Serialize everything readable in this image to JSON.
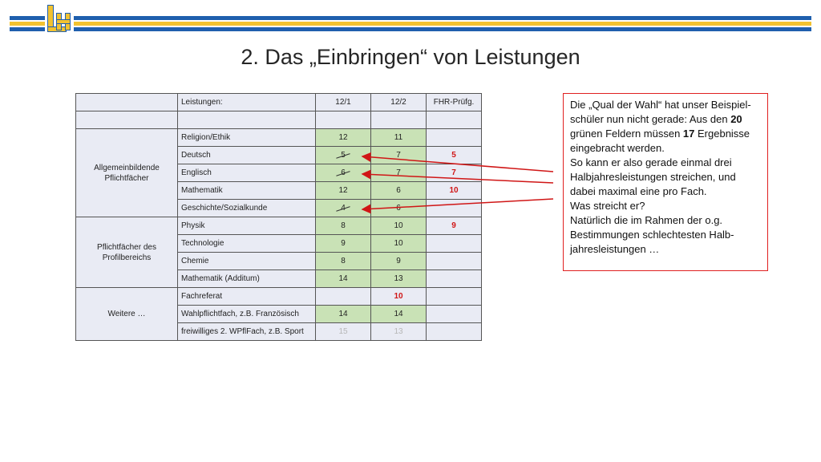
{
  "header": {
    "title": "2. Das „Einbringen“ von Leistungen"
  },
  "colors": {
    "accent_blue": "#1f5fae",
    "accent_yellow": "#f2c230",
    "cell_green": "#c9e2b6",
    "highlight_red": "#d01616"
  },
  "table": {
    "header": {
      "label": "Leistungen:",
      "col1": "12/1",
      "col2": "12/2",
      "col3": "FHR-Prüfg."
    },
    "groups": {
      "allgemein": "Allgemeinbildende Pflichtfächer",
      "profil": "Pflichtfächer des Profilbereichs",
      "weitere": "Weitere …"
    },
    "rows": [
      {
        "subject": "Religion/Ethik",
        "v1": "12",
        "v2": "11",
        "v3": ""
      },
      {
        "subject": "Deutsch",
        "v1": "5",
        "v2": "7",
        "v3": "5"
      },
      {
        "subject": "Englisch",
        "v1": "6",
        "v2": "7",
        "v3": "7"
      },
      {
        "subject": "Mathematik",
        "v1": "12",
        "v2": "6",
        "v3": "10"
      },
      {
        "subject": "Geschichte/Sozialkunde",
        "v1": "4",
        "v2": "6",
        "v3": ""
      },
      {
        "subject": "Physik",
        "v1": "8",
        "v2": "10",
        "v3": "9"
      },
      {
        "subject": "Technologie",
        "v1": "9",
        "v2": "10",
        "v3": ""
      },
      {
        "subject": "Chemie",
        "v1": "8",
        "v2": "9",
        "v3": ""
      },
      {
        "subject": "Mathematik (Additum)",
        "v1": "14",
        "v2": "13",
        "v3": ""
      },
      {
        "subject": "Fachreferat",
        "v1": "",
        "v2": "10",
        "v3": ""
      },
      {
        "subject": "Wahlpflichtfach, z.B. Französisch",
        "v1": "14",
        "v2": "14",
        "v3": ""
      },
      {
        "subject": "freiwilliges 2. WPflFach, z.B. Sport",
        "v1": "15",
        "v2": "13",
        "v3": ""
      }
    ]
  },
  "note": {
    "p1a": "Die „Qual der Wahl“ hat unser Beispiel-schüler nun nicht gerade: Aus den ",
    "p1b": "20",
    "p1c": " grünen Feldern müssen ",
    "p1d": "17",
    "p1e": " Ergebnisse eingebracht werden.",
    "p2": "So kann er also gerade einmal drei Halbjahresleistungen streichen, und dabei maximal eine pro Fach.",
    "p3": "Was streicht er?",
    "p4": "Natürlich die im Rahmen der o.g. Bestimmungen schlechtesten Halb-jahresleistungen …"
  }
}
